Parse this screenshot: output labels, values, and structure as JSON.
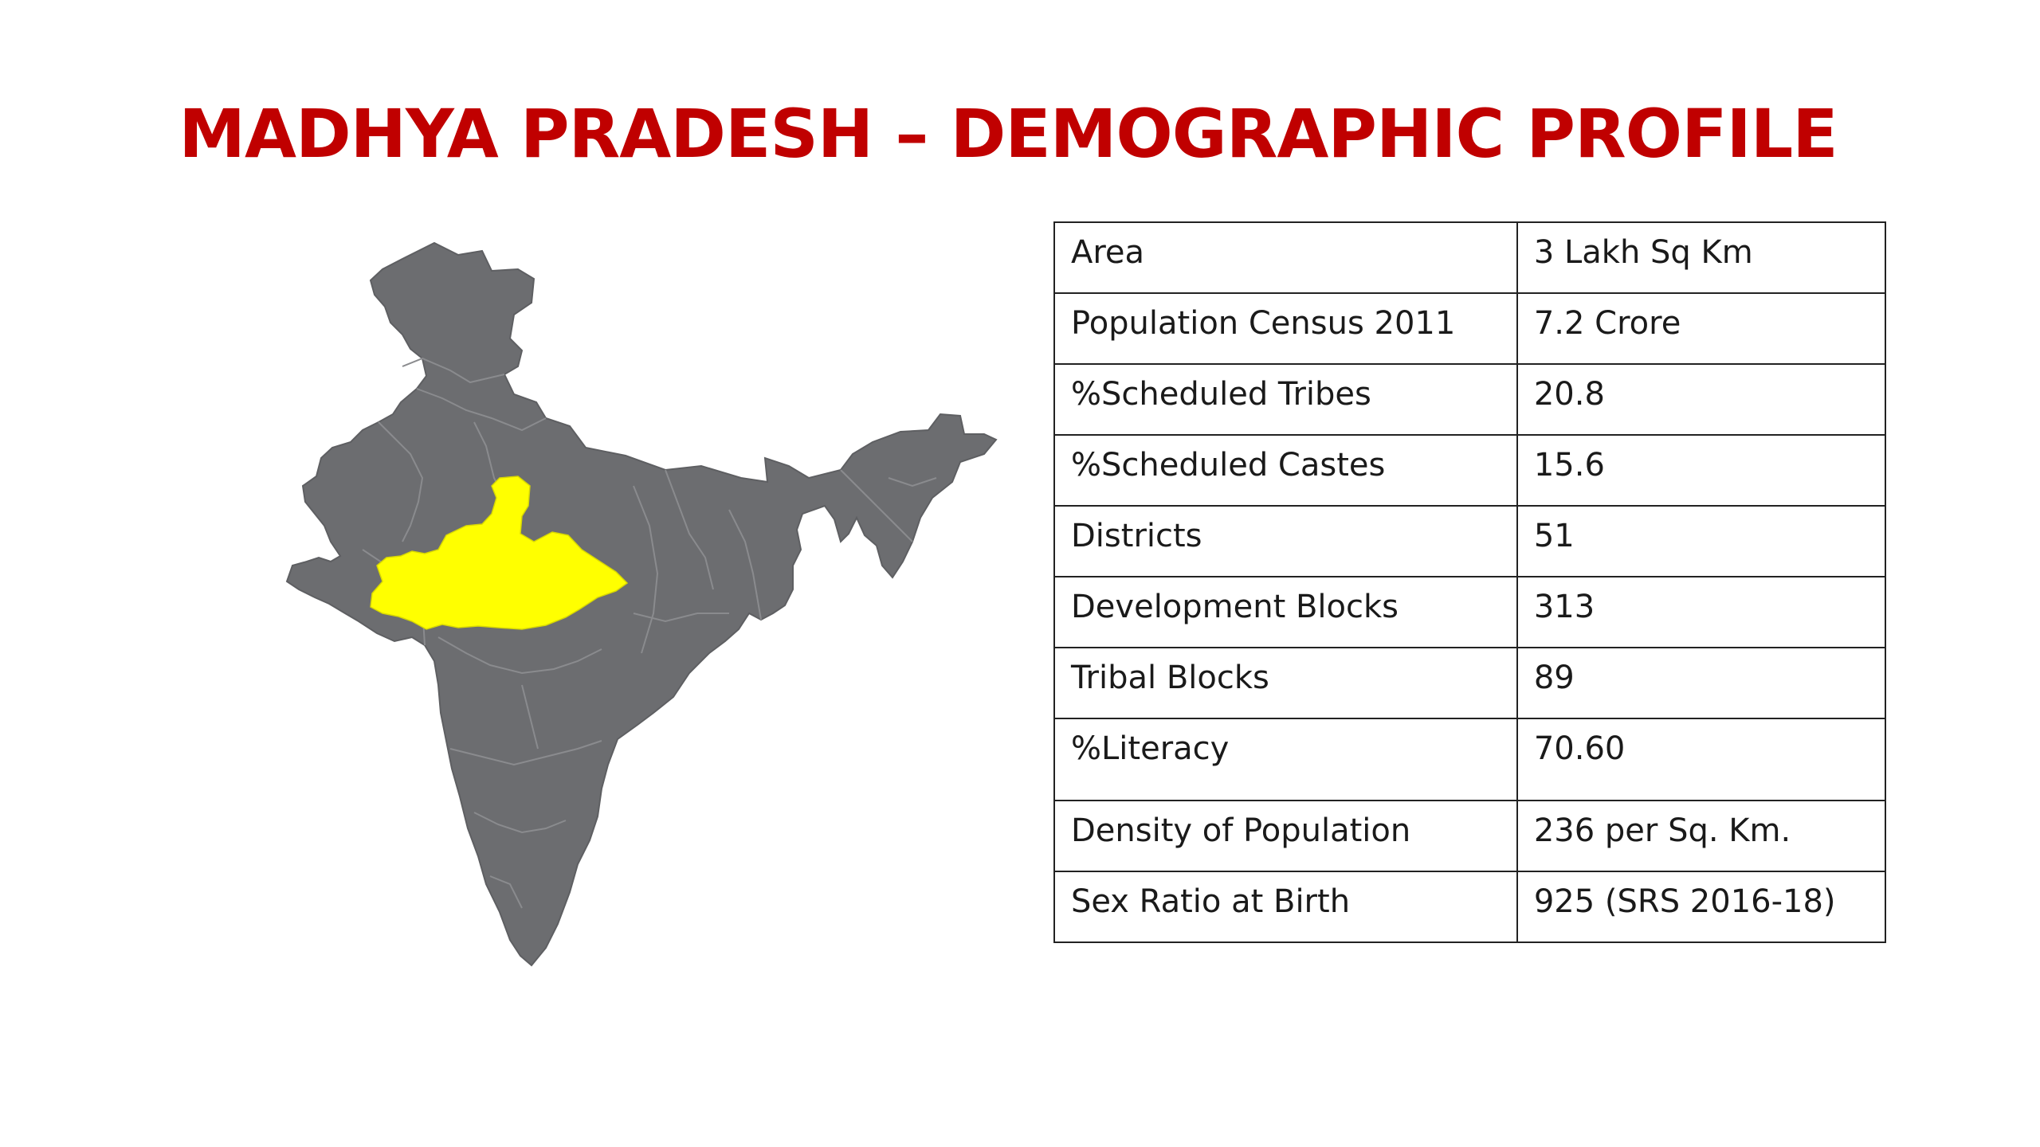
{
  "slide": {
    "title": "MADHYA PRADESH – DEMOGRAPHIC PROFILE"
  },
  "map": {
    "country_fill": "#6c6d70",
    "border_color": "#8a8b8e",
    "highlight_fill": "#ffff00",
    "highlight_region": "Madhya Pradesh"
  },
  "profile": {
    "rows": [
      {
        "label": "Area",
        "value": "3 Lakh Sq Km"
      },
      {
        "label": "Population Census 2011",
        "value": "7.2 Crore"
      },
      {
        "label": "%Scheduled Tribes",
        "value": "20.8"
      },
      {
        "label": "%Scheduled Castes",
        "value": "15.6"
      },
      {
        "label": "Districts",
        "value": "51"
      },
      {
        "label": "Development Blocks",
        "value": "313"
      },
      {
        "label": "Tribal Blocks",
        "value": "89"
      },
      {
        "label": "%Literacy",
        "value": "70.60"
      },
      {
        "label": "Density of Population",
        "value": "236 per Sq. Km."
      },
      {
        "label": "Sex Ratio at Birth",
        "value": "925 (SRS 2016-18)"
      }
    ]
  }
}
